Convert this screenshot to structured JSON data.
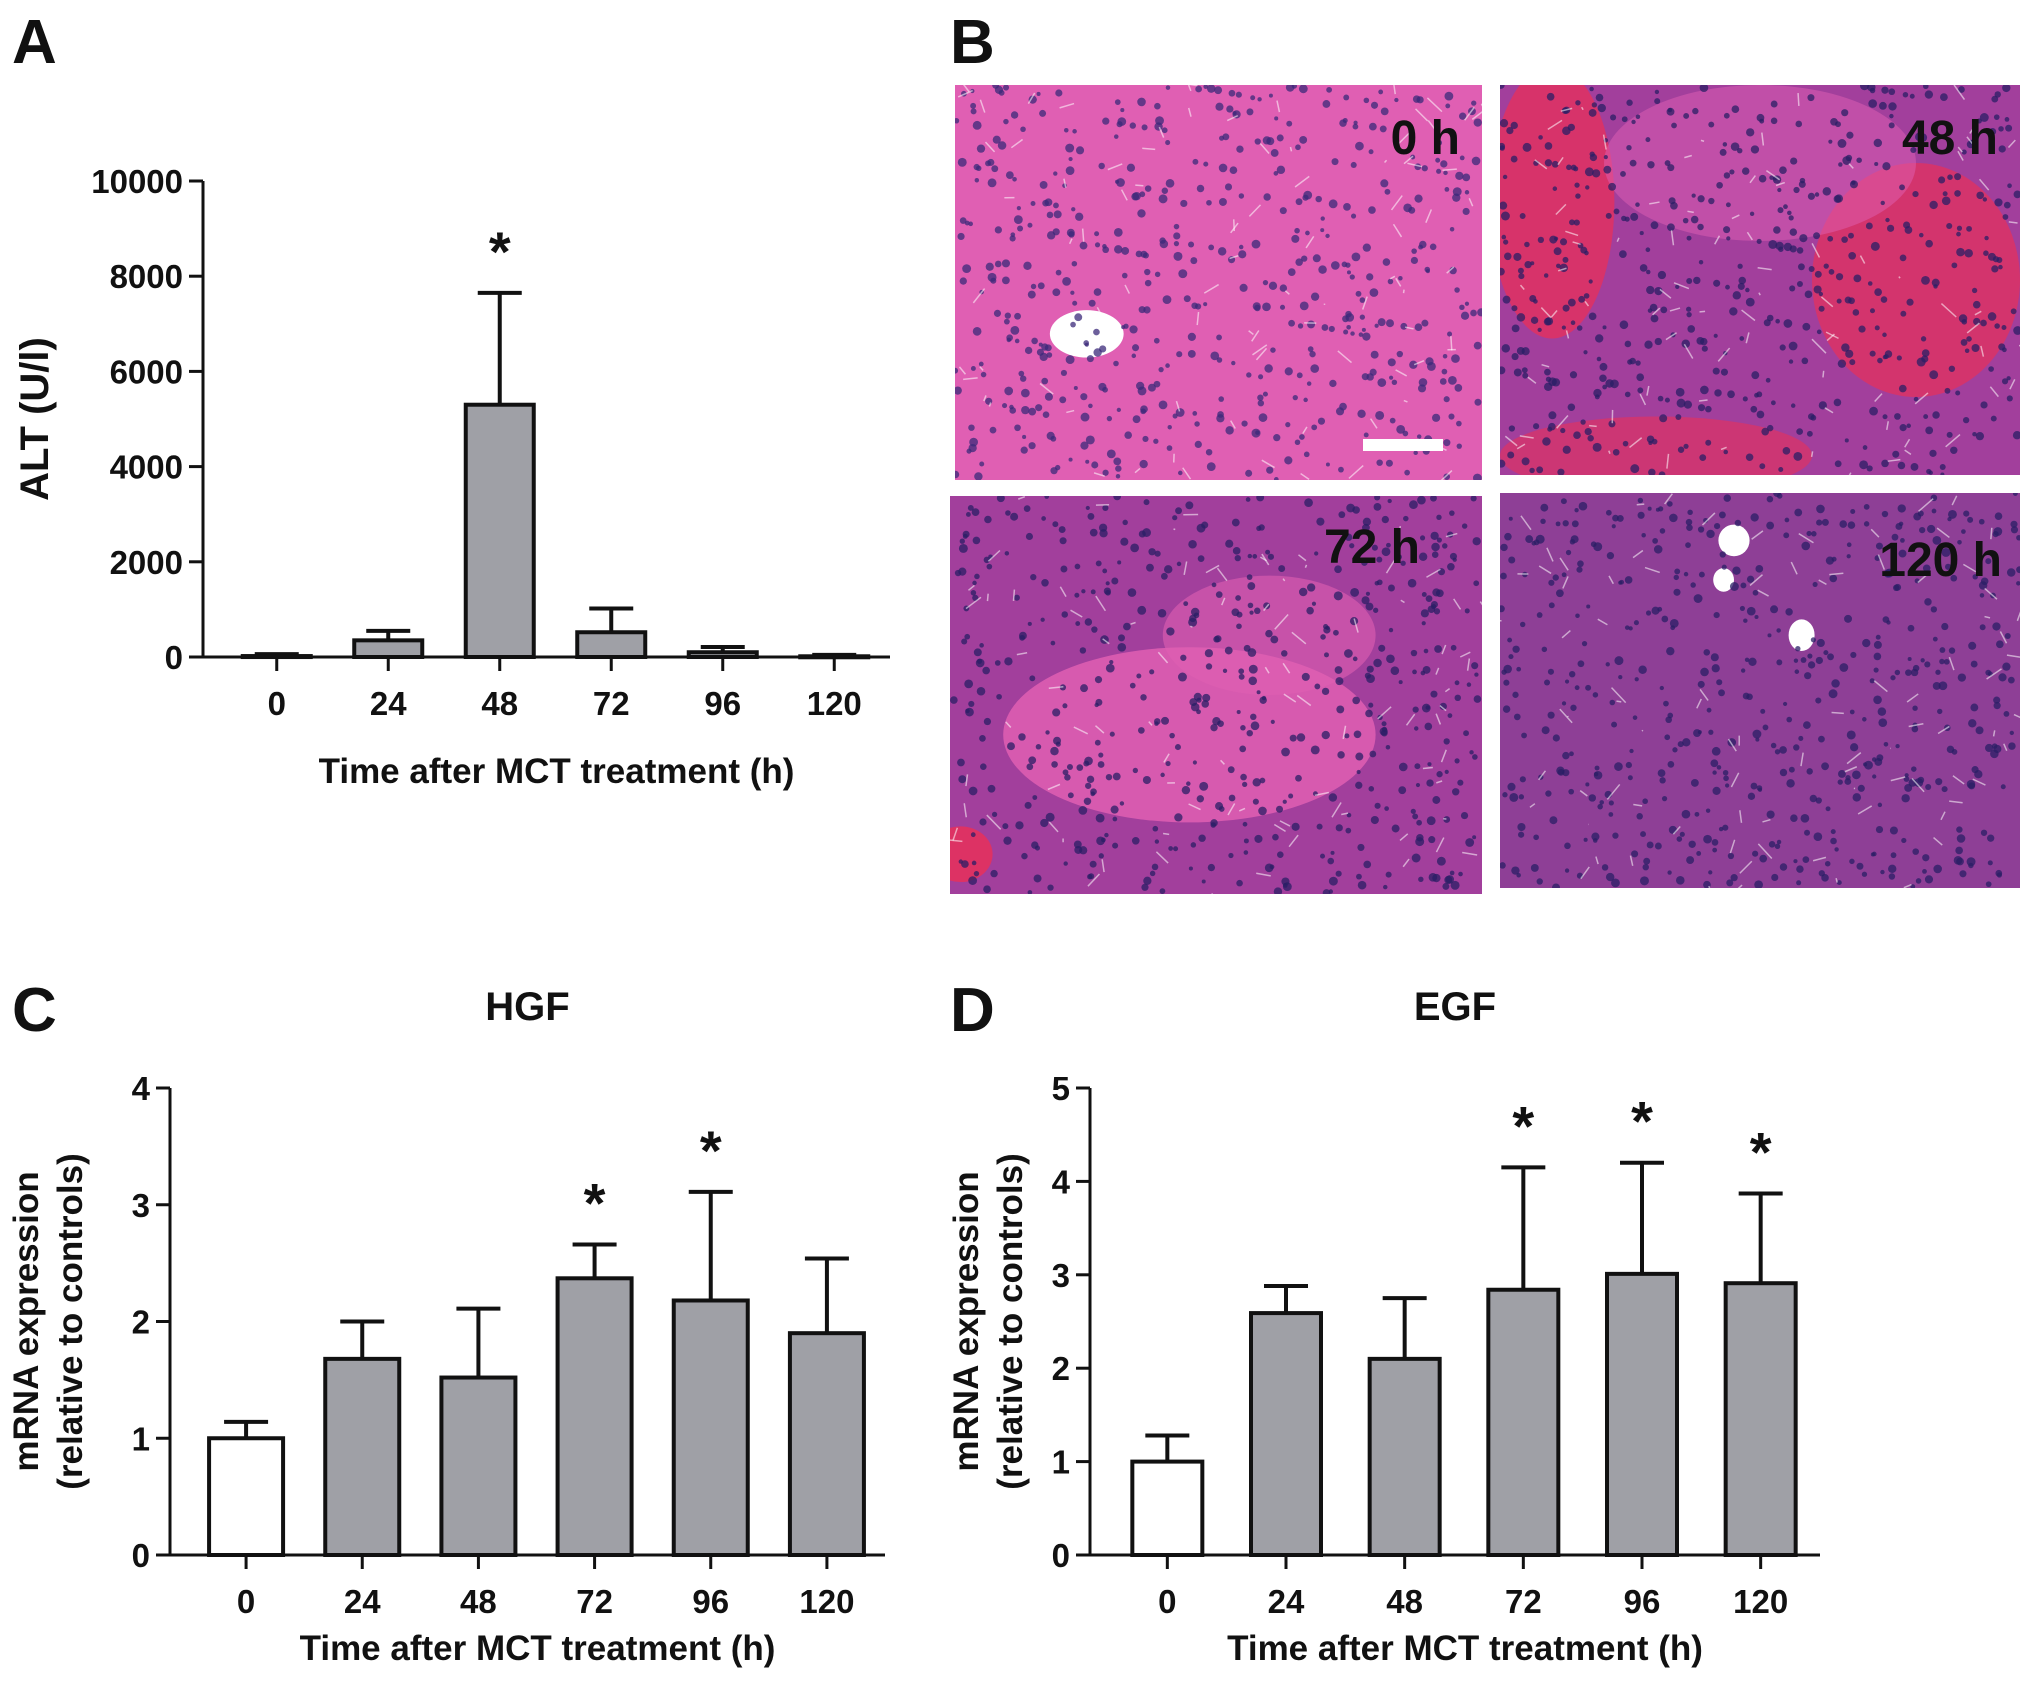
{
  "panels": {
    "A": "A",
    "B": "B",
    "C": "C",
    "D": "D"
  },
  "micrographs": [
    {
      "label": "0 h"
    },
    {
      "label": "48 h"
    },
    {
      "label": "72 h"
    },
    {
      "label": "120 h"
    }
  ],
  "colors": {
    "bar_fill": "#9fa0a6",
    "control_fill": "#ffffff",
    "stroke": "#111111",
    "he_pink": "#e05fb3",
    "he_purple": "#a23f9c",
    "hemorrhage": "#e8305a"
  },
  "chart_data": [
    {
      "id": "A",
      "type": "bar",
      "title": "",
      "xlabel": "Time after MCT treatment  (h)",
      "ylabel": "ALT (U/l)",
      "categories": [
        "0",
        "24",
        "48",
        "72",
        "96",
        "120"
      ],
      "values": [
        20,
        350,
        5300,
        520,
        100,
        15
      ],
      "errors": [
        40,
        200,
        2350,
        500,
        110,
        30
      ],
      "significant": [
        false,
        false,
        true,
        false,
        false,
        false
      ],
      "asterisk": "*",
      "ylim": [
        0,
        10000
      ],
      "yticks": [
        0,
        2000,
        4000,
        6000,
        8000,
        10000
      ]
    },
    {
      "id": "C",
      "type": "bar",
      "title": "HGF",
      "xlabel": "Time after MCT treatment  (h)",
      "ylabel": "mRNA expression",
      "ylabel2": "(relative to controls)",
      "categories": [
        "0",
        "24",
        "48",
        "72",
        "96",
        "120"
      ],
      "values": [
        1.0,
        1.68,
        1.52,
        2.37,
        2.18,
        1.9
      ],
      "errors": [
        0.14,
        0.32,
        0.59,
        0.29,
        0.93,
        0.64
      ],
      "significant": [
        false,
        false,
        false,
        true,
        true,
        false
      ],
      "control_index": 0,
      "asterisk": "*",
      "ylim": [
        0,
        4
      ],
      "yticks": [
        0,
        1,
        2,
        3,
        4
      ]
    },
    {
      "id": "D",
      "type": "bar",
      "title": "EGF",
      "xlabel": "Time after MCT treatment  (h)",
      "ylabel": "mRNA expression",
      "ylabel2": "(relative to controls)",
      "categories": [
        "0",
        "24",
        "48",
        "72",
        "96",
        "120"
      ],
      "values": [
        1.0,
        2.59,
        2.1,
        2.84,
        3.01,
        2.91
      ],
      "errors": [
        0.28,
        0.29,
        0.65,
        1.31,
        1.19,
        0.96
      ],
      "significant": [
        false,
        false,
        false,
        true,
        true,
        true
      ],
      "control_index": 0,
      "asterisk": "*",
      "ylim": [
        0,
        5
      ],
      "yticks": [
        0,
        1,
        2,
        3,
        4,
        5
      ]
    }
  ]
}
